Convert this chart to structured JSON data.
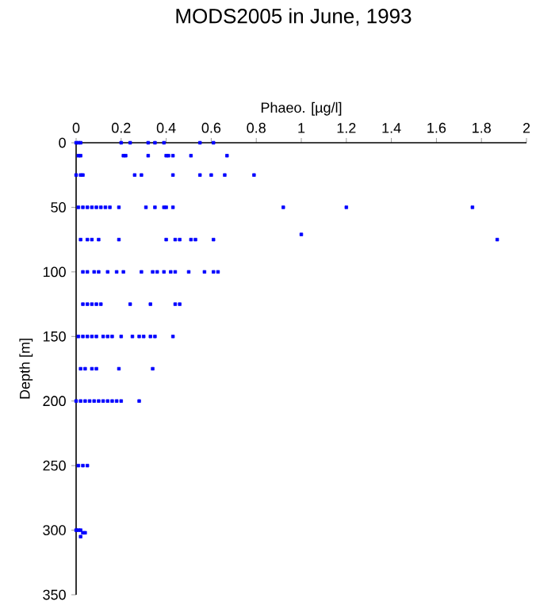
{
  "chart_data": {
    "type": "scatter",
    "title": "MODS2005 in June, 1993",
    "xlabel": "Phaeo. [µg/l]",
    "ylabel": "Depth [m]",
    "xlim": [
      0,
      2
    ],
    "xticks": [
      0,
      0.2,
      0.4,
      0.6,
      0.8,
      1,
      1.2,
      1.4,
      1.6,
      1.8,
      2
    ],
    "ylim": [
      350,
      0
    ],
    "yticks": [
      0,
      50,
      100,
      150,
      200,
      250,
      300,
      350
    ],
    "marker": "square",
    "grid": false,
    "series": [
      {
        "color": "#0000ff",
        "x": [
          0,
          0.01,
          0.02,
          0.2,
          0.24,
          0.32,
          0.35,
          0.39,
          0.55,
          0.61,
          0.01,
          0.02,
          0.21,
          0.22,
          0.32,
          0.4,
          0.41,
          0.43,
          0.51,
          0.67,
          0,
          0.02,
          0.03,
          0.26,
          0.29,
          0.43,
          0.55,
          0.6,
          0.66,
          0.79,
          0.01,
          0.03,
          0.05,
          0.07,
          0.09,
          0.11,
          0.13,
          0.15,
          0.19,
          0.31,
          0.35,
          0.39,
          0.4,
          0.43,
          0.92,
          1.2,
          1.76,
          0.02,
          0.05,
          0.07,
          0.1,
          0.19,
          0.4,
          0.44,
          0.46,
          0.51,
          0.53,
          0.61,
          1,
          1.87,
          0.03,
          0.05,
          0.08,
          0.1,
          0.14,
          0.18,
          0.21,
          0.29,
          0.34,
          0.36,
          0.39,
          0.42,
          0.44,
          0.5,
          0.57,
          0.61,
          0.63,
          0.03,
          0.05,
          0.07,
          0.09,
          0.11,
          0.24,
          0.33,
          0.44,
          0.46,
          0.01,
          0.03,
          0.05,
          0.07,
          0.09,
          0.12,
          0.14,
          0.16,
          0.2,
          0.25,
          0.28,
          0.3,
          0.33,
          0.35,
          0.43,
          0.02,
          0.04,
          0.07,
          0.09,
          0.19,
          0.34,
          0,
          0.02,
          0.04,
          0.06,
          0.08,
          0.1,
          0.12,
          0.14,
          0.16,
          0.18,
          0.2,
          0.28,
          0.01,
          0.03,
          0.05,
          0,
          0.01,
          0.02,
          0.03,
          0.04,
          0.02
        ],
        "values": [
          0,
          0,
          0,
          0,
          0,
          0,
          0,
          0,
          0,
          0,
          10,
          10,
          10,
          10,
          10,
          10,
          10,
          10,
          10,
          10,
          25,
          25,
          25,
          25,
          25,
          25,
          25,
          25,
          25,
          25,
          50,
          50,
          50,
          50,
          50,
          50,
          50,
          50,
          50,
          50,
          50,
          50,
          50,
          50,
          50,
          50,
          50,
          75,
          75,
          75,
          75,
          75,
          75,
          75,
          75,
          75,
          75,
          75,
          71,
          75,
          100,
          100,
          100,
          100,
          100,
          100,
          100,
          100,
          100,
          100,
          100,
          100,
          100,
          100,
          100,
          100,
          100,
          125,
          125,
          125,
          125,
          125,
          125,
          125,
          125,
          125,
          150,
          150,
          150,
          150,
          150,
          150,
          150,
          150,
          150,
          150,
          150,
          150,
          150,
          150,
          150,
          175,
          175,
          175,
          175,
          175,
          175,
          200,
          200,
          200,
          200,
          200,
          200,
          200,
          200,
          200,
          200,
          200,
          200,
          250,
          250,
          250,
          300,
          300,
          300,
          302,
          302,
          305
        ]
      }
    ]
  }
}
